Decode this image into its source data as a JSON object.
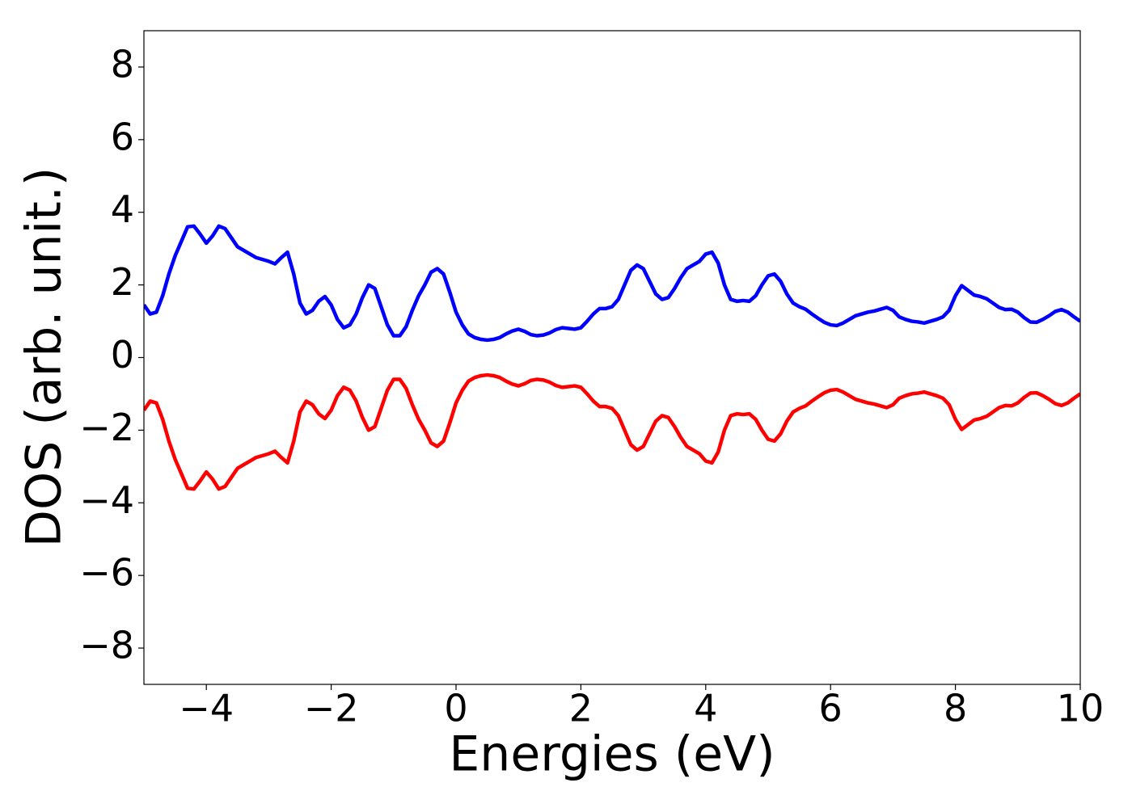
{
  "chart_data": {
    "type": "line",
    "xlabel": "Energies (eV)",
    "ylabel": "DOS (arb. unit.)",
    "xlim": [
      -5,
      10
    ],
    "ylim": [
      -9,
      9
    ],
    "xticks": [
      {
        "value": -4,
        "label": "−4"
      },
      {
        "value": -2,
        "label": "−2"
      },
      0,
      2,
      4,
      6,
      8,
      10
    ],
    "yticks": [
      {
        "value": -8,
        "label": "−8"
      },
      {
        "value": -6,
        "label": "−6"
      },
      {
        "value": -4,
        "label": "−4"
      },
      {
        "value": -2,
        "label": "−2"
      },
      0,
      2,
      4,
      6,
      8
    ],
    "x": [
      -5,
      -4.9,
      -4.8,
      -4.7,
      -4.6,
      -4.5,
      -4.4,
      -4.3,
      -4.2,
      -4.1,
      -4,
      -3.9,
      -3.8,
      -3.7,
      -3.6,
      -3.5,
      -3.4,
      -3.3,
      -3.2,
      -3.1,
      -3,
      -2.9,
      -2.8,
      -2.7,
      -2.6,
      -2.5,
      -2.4,
      -2.3,
      -2.2,
      -2.1,
      -2,
      -1.9,
      -1.8,
      -1.7,
      -1.6,
      -1.5,
      -1.4,
      -1.3,
      -1.2,
      -1.1,
      -1,
      -0.9,
      -0.8,
      -0.7,
      -0.6,
      -0.5,
      -0.4,
      -0.3,
      -0.2,
      -0.1,
      0,
      0.1,
      0.2,
      0.3,
      0.4,
      0.5,
      0.6,
      0.7,
      0.8,
      0.9,
      1,
      1.1,
      1.2,
      1.3,
      1.4,
      1.5,
      1.6,
      1.7,
      1.8,
      1.9,
      2,
      2.1,
      2.2,
      2.3,
      2.4,
      2.5,
      2.6,
      2.7,
      2.8,
      2.9,
      3,
      3.1,
      3.2,
      3.3,
      3.4,
      3.5,
      3.6,
      3.7,
      3.8,
      3.9,
      4,
      4.1,
      4.2,
      4.3,
      4.4,
      4.5,
      4.6,
      4.7,
      4.8,
      4.9,
      5,
      5.1,
      5.2,
      5.3,
      5.4,
      5.5,
      5.6,
      5.7,
      5.8,
      5.9,
      6,
      6.1,
      6.2,
      6.3,
      6.4,
      6.5,
      6.6,
      6.7,
      6.8,
      6.9,
      7,
      7.1,
      7.2,
      7.3,
      7.4,
      7.5,
      7.6,
      7.7,
      7.8,
      7.9,
      8,
      8.1,
      8.2,
      8.3,
      8.4,
      8.5,
      8.6,
      8.7,
      8.8,
      8.9,
      9,
      9.1,
      9.2,
      9.3,
      9.4,
      9.5,
      9.6,
      9.7,
      9.8,
      9.9,
      10
    ],
    "series": [
      {
        "color": "#0000ff",
        "values": [
          1.45,
          1.2,
          1.25,
          1.7,
          2.3,
          2.8,
          3.2,
          3.6,
          3.62,
          3.4,
          3.15,
          3.35,
          3.62,
          3.55,
          3.3,
          3.05,
          2.95,
          2.85,
          2.75,
          2.7,
          2.65,
          2.58,
          2.75,
          2.9,
          2.3,
          1.5,
          1.2,
          1.3,
          1.55,
          1.68,
          1.45,
          1.05,
          0.82,
          0.9,
          1.2,
          1.65,
          2.0,
          1.9,
          1.4,
          0.9,
          0.6,
          0.6,
          0.85,
          1.3,
          1.7,
          2.0,
          2.35,
          2.45,
          2.3,
          1.8,
          1.25,
          0.9,
          0.65,
          0.55,
          0.5,
          0.48,
          0.5,
          0.55,
          0.65,
          0.73,
          0.78,
          0.72,
          0.63,
          0.6,
          0.62,
          0.68,
          0.77,
          0.82,
          0.8,
          0.78,
          0.82,
          1.0,
          1.2,
          1.35,
          1.35,
          1.4,
          1.6,
          2.0,
          2.4,
          2.55,
          2.45,
          2.1,
          1.75,
          1.6,
          1.65,
          1.9,
          2.2,
          2.45,
          2.55,
          2.65,
          2.85,
          2.9,
          2.6,
          2.0,
          1.6,
          1.55,
          1.57,
          1.55,
          1.7,
          2.0,
          2.25,
          2.3,
          2.1,
          1.75,
          1.5,
          1.4,
          1.33,
          1.2,
          1.08,
          0.97,
          0.9,
          0.88,
          0.95,
          1.05,
          1.15,
          1.2,
          1.25,
          1.28,
          1.33,
          1.38,
          1.3,
          1.12,
          1.05,
          1.0,
          0.98,
          0.95,
          1.0,
          1.05,
          1.12,
          1.3,
          1.7,
          1.98,
          1.85,
          1.72,
          1.68,
          1.62,
          1.5,
          1.38,
          1.32,
          1.33,
          1.25,
          1.1,
          0.98,
          0.97,
          1.05,
          1.15,
          1.27,
          1.32,
          1.25,
          1.12,
          1.0
        ]
      },
      {
        "color": "#ff0000",
        "values": [
          -1.45,
          -1.2,
          -1.25,
          -1.7,
          -2.3,
          -2.8,
          -3.2,
          -3.6,
          -3.62,
          -3.4,
          -3.15,
          -3.35,
          -3.62,
          -3.55,
          -3.3,
          -3.05,
          -2.95,
          -2.85,
          -2.75,
          -2.7,
          -2.65,
          -2.58,
          -2.75,
          -2.9,
          -2.3,
          -1.5,
          -1.2,
          -1.3,
          -1.55,
          -1.68,
          -1.45,
          -1.05,
          -0.82,
          -0.9,
          -1.2,
          -1.65,
          -2.0,
          -1.9,
          -1.4,
          -0.9,
          -0.6,
          -0.6,
          -0.85,
          -1.3,
          -1.7,
          -2.0,
          -2.35,
          -2.45,
          -2.3,
          -1.8,
          -1.25,
          -0.9,
          -0.65,
          -0.55,
          -0.5,
          -0.48,
          -0.5,
          -0.55,
          -0.65,
          -0.73,
          -0.78,
          -0.72,
          -0.63,
          -0.6,
          -0.62,
          -0.68,
          -0.77,
          -0.82,
          -0.8,
          -0.78,
          -0.82,
          -1.0,
          -1.2,
          -1.35,
          -1.35,
          -1.4,
          -1.6,
          -2.0,
          -2.4,
          -2.55,
          -2.45,
          -2.1,
          -1.75,
          -1.6,
          -1.65,
          -1.9,
          -2.2,
          -2.45,
          -2.55,
          -2.65,
          -2.85,
          -2.9,
          -2.6,
          -2.0,
          -1.6,
          -1.55,
          -1.57,
          -1.55,
          -1.7,
          -2.0,
          -2.25,
          -2.3,
          -2.1,
          -1.75,
          -1.5,
          -1.4,
          -1.33,
          -1.2,
          -1.08,
          -0.97,
          -0.9,
          -0.88,
          -0.95,
          -1.05,
          -1.15,
          -1.2,
          -1.25,
          -1.28,
          -1.33,
          -1.38,
          -1.3,
          -1.12,
          -1.05,
          -1.0,
          -0.98,
          -0.95,
          -1.0,
          -1.05,
          -1.12,
          -1.3,
          -1.7,
          -1.98,
          -1.85,
          -1.72,
          -1.68,
          -1.62,
          -1.5,
          -1.38,
          -1.32,
          -1.33,
          -1.25,
          -1.1,
          -0.98,
          -0.97,
          -1.05,
          -1.15,
          -1.27,
          -1.32,
          -1.25,
          -1.12,
          -1.0
        ]
      }
    ]
  }
}
